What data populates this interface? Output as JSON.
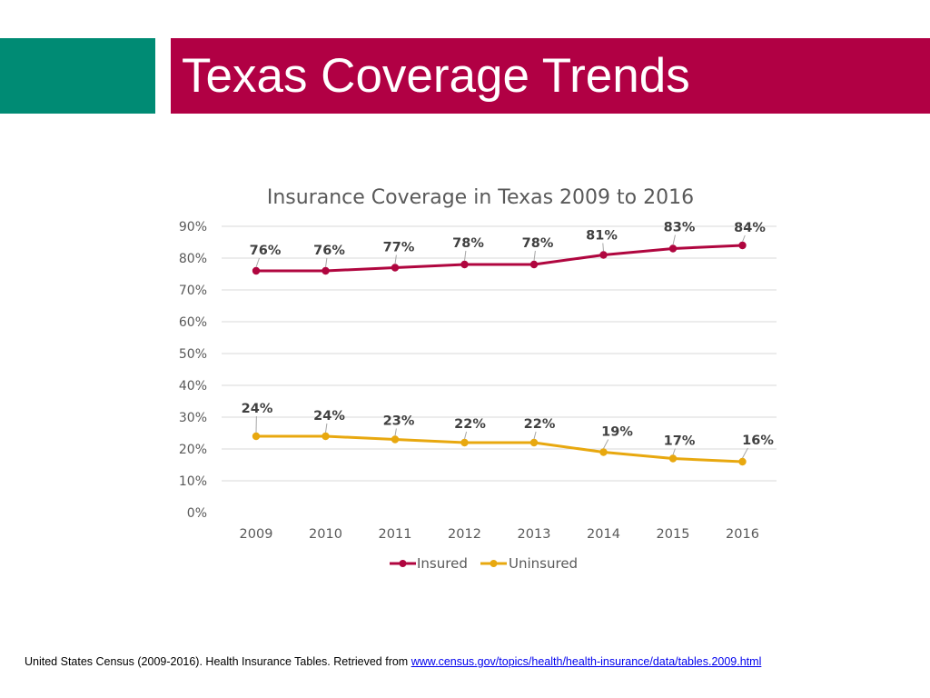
{
  "slide": {
    "title": "Texas Coverage Trends",
    "accent_color": "#008b74",
    "title_bar_color": "#b10044"
  },
  "chart_data": {
    "type": "line",
    "title": "Insurance Coverage in Texas 2009 to 2016",
    "categories": [
      "2009",
      "2010",
      "2011",
      "2012",
      "2013",
      "2014",
      "2015",
      "2016"
    ],
    "series": [
      {
        "name": "Insured",
        "color": "#b0063f",
        "values": [
          76,
          76,
          77,
          78,
          78,
          81,
          83,
          84
        ],
        "labels": [
          "76%",
          "76%",
          "77%",
          "78%",
          "78%",
          "81%",
          "83%",
          "84%"
        ]
      },
      {
        "name": "Uninsured",
        "color": "#e8a80f",
        "values": [
          24,
          24,
          23,
          22,
          22,
          19,
          17,
          16
        ],
        "labels": [
          "24%",
          "24%",
          "23%",
          "22%",
          "22%",
          "19%",
          "17%",
          "16%"
        ]
      }
    ],
    "yticks": [
      "0%",
      "10%",
      "20%",
      "30%",
      "40%",
      "50%",
      "60%",
      "70%",
      "80%",
      "90%"
    ],
    "ylim": [
      0,
      90
    ],
    "xlabel": "",
    "ylabel": "",
    "grid": true,
    "legend": "bottom"
  },
  "footer": {
    "citation": "United States Census (2009-2016). Health Insurance Tables. Retrieved from ",
    "link_text": "www.census.gov/topics/health/health-insurance/data/tables.2009.html"
  }
}
